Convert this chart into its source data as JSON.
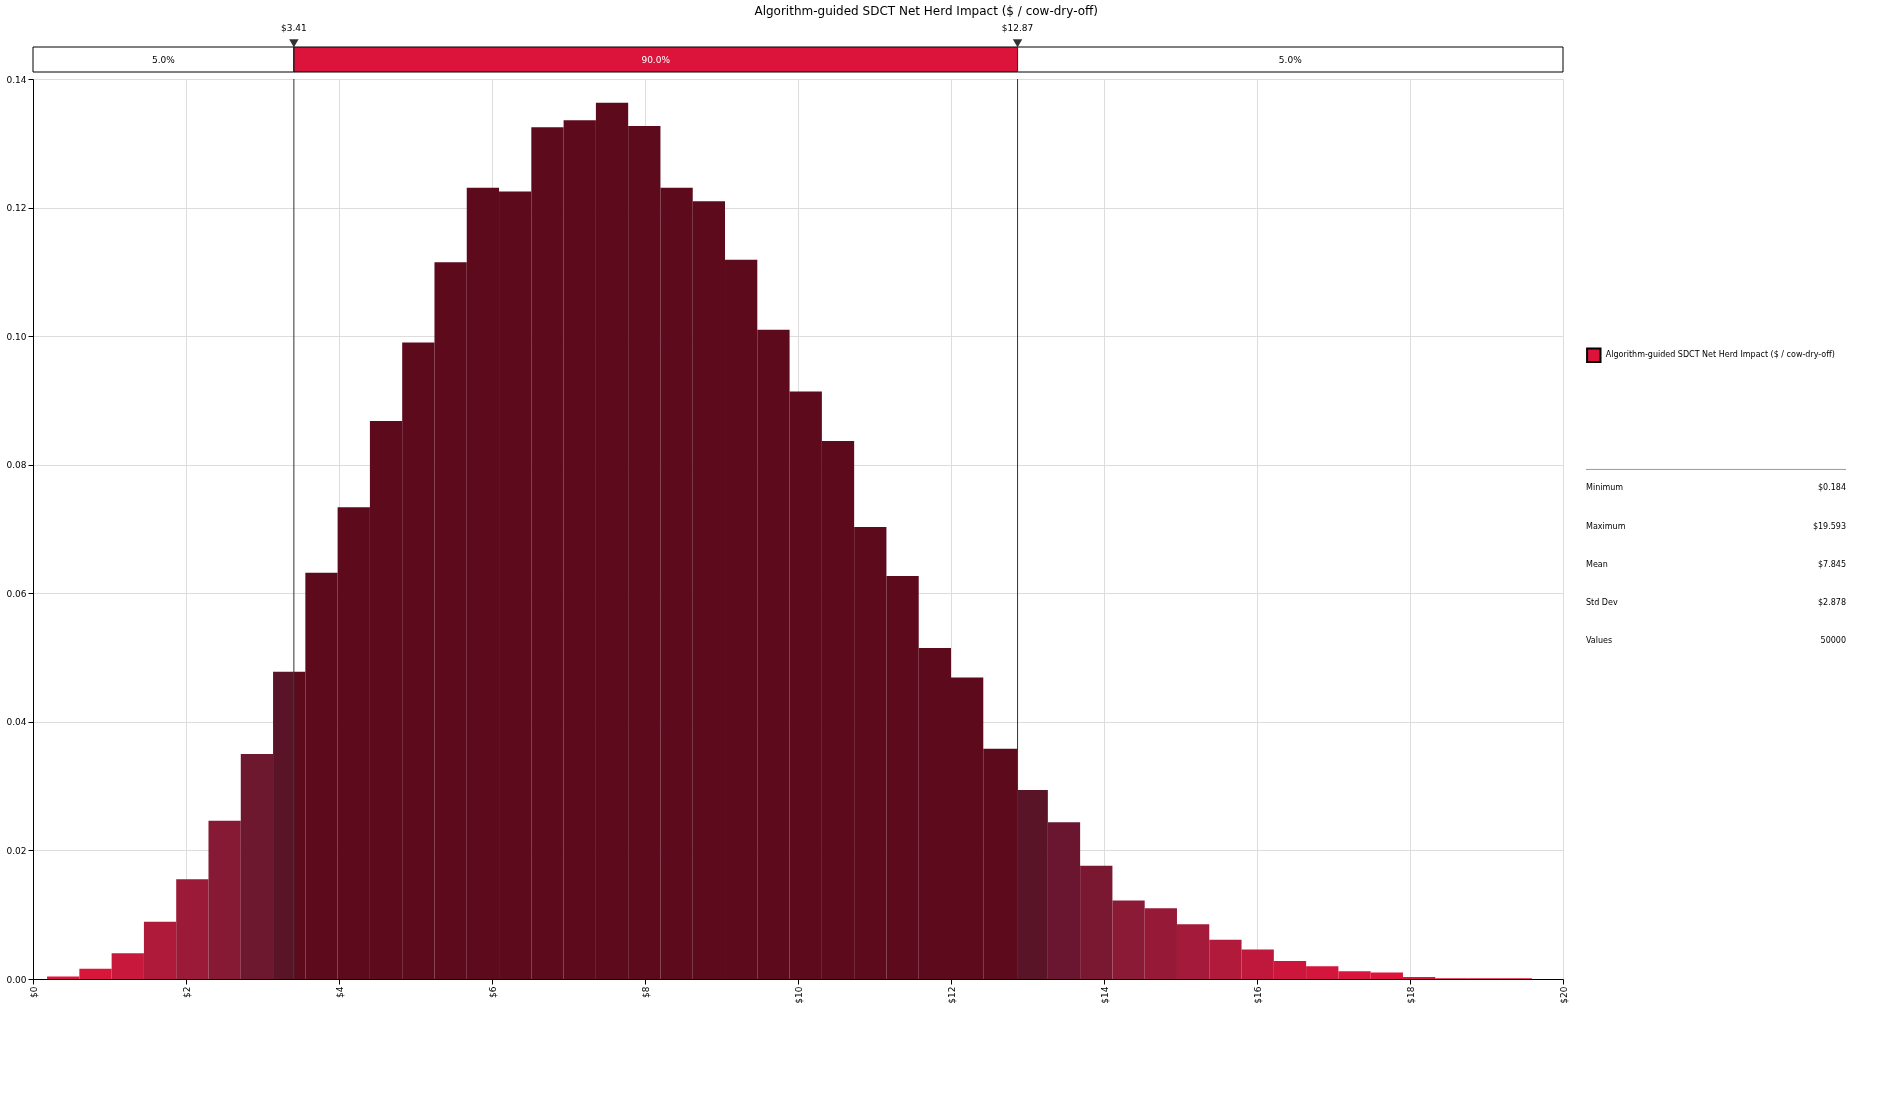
{
  "chart_data": {
    "type": "histogram",
    "title": "Algorithm-guided SDCT Net Herd Impact ($ / cow-dry-off)",
    "bins": [
      0.184,
      0.606,
      1.028,
      1.45,
      1.872,
      2.294,
      2.716,
      3.138,
      3.41,
      3.56,
      3.982,
      4.404,
      4.826,
      5.248,
      5.67,
      6.092,
      6.514,
      6.936,
      7.358,
      7.78,
      8.202,
      8.624,
      9.046,
      9.468,
      9.89,
      10.312,
      10.734,
      11.156,
      11.578,
      12.0,
      12.422,
      12.87,
      13.266,
      13.688,
      14.11,
      14.532,
      14.954,
      15.376,
      15.798,
      16.22,
      16.642,
      17.064,
      17.486,
      17.908,
      18.33,
      18.752,
      19.174,
      19.593
    ],
    "series": [
      {
        "name": "Algorithm-guided SDCT Net Herd Impact ($ / cow-dry-off)",
        "color": "#dc143c",
        "values": [
          0.0004,
          0.0016,
          0.004,
          0.0089,
          0.0155,
          0.0246,
          0.035,
          0.0478,
          0.0478,
          0.0632,
          0.0734,
          0.0868,
          0.099,
          0.1115,
          0.1231,
          0.1225,
          0.1325,
          0.1336,
          0.1363,
          0.1327,
          0.1231,
          0.121,
          0.1119,
          0.101,
          0.0914,
          0.0837,
          0.0703,
          0.0627,
          0.0515,
          0.0469,
          0.0358,
          0.0294,
          0.0244,
          0.0176,
          0.0122,
          0.011,
          0.0085,
          0.0061,
          0.0046,
          0.0028,
          0.002,
          0.0012,
          0.001,
          0.0003,
          0.0001,
          0.0001,
          0.0001
        ],
        "colors": [
          "#e0143c",
          "#d8163c",
          "#c8183c",
          "#b01a3a",
          "#9a1a38",
          "#861a34",
          "#6e1830",
          "#5a1428",
          "#5c0a1c",
          "#5c0a1c",
          "#5c0a1c",
          "#5c0a1c",
          "#5c0a1c",
          "#5c0a1c",
          "#5c0a1c",
          "#5c0a1c",
          "#5c0a1c",
          "#5c0a1c",
          "#5c0a1c",
          "#5c0a1c",
          "#5c0a1c",
          "#5c0a1c",
          "#5c0a1c",
          "#5c0a1c",
          "#5c0a1c",
          "#5c0a1c",
          "#5c0a1c",
          "#5c0a1c",
          "#5c0a1c",
          "#5c0a1c",
          "#5c0a1c",
          "#5a1428",
          "#6a1630",
          "#7a1832",
          "#8a1a36",
          "#961a38",
          "#a41a3a",
          "#b21a3b",
          "#c0183c",
          "#cc163c",
          "#d4163c",
          "#da143c",
          "#de143c",
          "#e0143c",
          "#e0143c",
          "#e0143c",
          "#e0143c"
        ]
      }
    ],
    "xlim": [
      0,
      20
    ],
    "xticks": [
      {
        "value": 0,
        "label": "$0"
      },
      {
        "value": 2,
        "label": "$2"
      },
      {
        "value": 4,
        "label": "$4"
      },
      {
        "value": 6,
        "label": "$6"
      },
      {
        "value": 8,
        "label": "$8"
      },
      {
        "value": 10,
        "label": "$10"
      },
      {
        "value": 12,
        "label": "$12"
      },
      {
        "value": 14,
        "label": "$14"
      },
      {
        "value": 16,
        "label": "$16"
      },
      {
        "value": 18,
        "label": "$18"
      },
      {
        "value": 20,
        "label": "$20"
      }
    ],
    "ylim": [
      0,
      0.14
    ],
    "yticks": [
      {
        "value": 0,
        "label": "0.00"
      },
      0.02,
      0.04,
      0.06,
      0.08,
      {
        "value": 0.1,
        "label": "0.10"
      },
      0.12,
      0.14
    ],
    "grid": true,
    "legend": "right",
    "ref_lines": [
      {
        "axis": "x",
        "value": 3.41,
        "label": "$3.41"
      },
      {
        "axis": "x",
        "value": 12.87,
        "label": "$12.87"
      }
    ],
    "annotations": [
      "5.0%",
      "90.0%",
      "5.0%",
      "Minimum",
      "$0.184",
      "Maximum",
      "$19.593",
      "Mean",
      "$7.845",
      "Std Dev",
      "$2.878",
      "Values",
      "50000"
    ]
  }
}
